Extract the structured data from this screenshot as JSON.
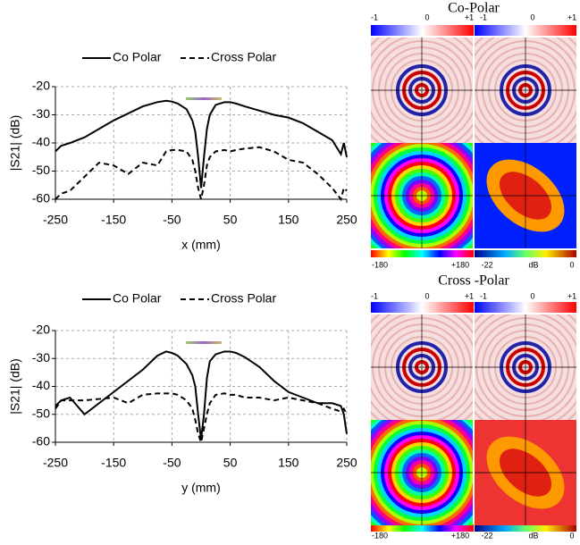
{
  "chart_data": [
    {
      "type": "line",
      "x_label": "x (mm)",
      "y_label": "|S21| (dB)",
      "x": [
        -250,
        -240,
        -225,
        -200,
        -175,
        -150,
        -125,
        -100,
        -75,
        -60,
        -50,
        -40,
        -25,
        -15,
        -10,
        -5,
        0,
        5,
        10,
        15,
        25,
        40,
        50,
        60,
        75,
        100,
        125,
        150,
        175,
        200,
        225,
        240,
        245,
        250
      ],
      "series": [
        {
          "name": "Co Polar",
          "color": "#000000",
          "dash": false,
          "values": [
            -43,
            -41,
            -40,
            -38,
            -35,
            -32,
            -29.5,
            -27,
            -25.5,
            -25,
            -25.3,
            -26,
            -28,
            -32,
            -36,
            -45,
            -56,
            -45,
            -35,
            -30,
            -26.5,
            -25.5,
            -25.5,
            -26,
            -27,
            -28.5,
            -30,
            -31,
            -33,
            -36,
            -39,
            -44,
            -40,
            -45
          ]
        },
        {
          "name": "Cross Polar",
          "color": "#000000",
          "dash": true,
          "values": [
            -60,
            -58,
            -57,
            -52,
            -47,
            -48,
            -51,
            -47,
            -48,
            -43,
            -42.5,
            -42.5,
            -43,
            -46,
            -50,
            -56,
            -60,
            -55,
            -48,
            -45,
            -43,
            -42.5,
            -43,
            -42.5,
            -42,
            -41.5,
            -43,
            -46,
            -47,
            -51,
            -56,
            -60,
            -56,
            -57
          ]
        }
      ],
      "xlim": [
        -250,
        250
      ],
      "ylim": [
        -60,
        -20
      ],
      "xticks": [
        -250,
        -150,
        -50,
        50,
        150,
        250
      ],
      "yticks": [
        -60,
        -50,
        -40,
        -30,
        -20
      ],
      "grid": true
    },
    {
      "type": "line",
      "x_label": "y (mm)",
      "y_label": "|S21| (dB)",
      "x": [
        -250,
        -240,
        -225,
        -200,
        -175,
        -150,
        -125,
        -100,
        -75,
        -60,
        -50,
        -40,
        -25,
        -15,
        -10,
        -5,
        0,
        5,
        10,
        15,
        25,
        40,
        50,
        60,
        75,
        100,
        125,
        150,
        175,
        200,
        225,
        240,
        245,
        250
      ],
      "series": [
        {
          "name": "Co Polar",
          "color": "#000000",
          "dash": false,
          "values": [
            -47,
            -45,
            -44,
            -50,
            -46,
            -42,
            -38,
            -34,
            -29,
            -27.5,
            -28,
            -29,
            -32,
            -36,
            -40,
            -50,
            -59,
            -50,
            -37,
            -31,
            -28.5,
            -27.5,
            -27.5,
            -28,
            -29.5,
            -33,
            -38,
            -42,
            -44,
            -46,
            -46,
            -47,
            -50,
            -57
          ]
        },
        {
          "name": "Cross Polar",
          "color": "#000000",
          "dash": true,
          "values": [
            -48,
            -45,
            -45,
            -45,
            -44.5,
            -44,
            -46,
            -43,
            -42.5,
            -42.5,
            -42.5,
            -43,
            -45,
            -48,
            -52,
            -57,
            -60,
            -55,
            -50,
            -46,
            -43,
            -42.5,
            -43,
            -43,
            -44,
            -44,
            -45,
            -44,
            -45,
            -46,
            -48,
            -49,
            -48,
            -50
          ]
        }
      ],
      "xlim": [
        -250,
        250
      ],
      "ylim": [
        -60,
        -20
      ],
      "xticks": [
        -250,
        -150,
        -50,
        50,
        150,
        250
      ],
      "yticks": [
        -60,
        -50,
        -40,
        -30,
        -20
      ],
      "grid": true
    }
  ],
  "image_panels": [
    {
      "title": "Co-Polar",
      "top_labels": [
        "-1",
        "0",
        "+1",
        "-1",
        "0",
        "+1"
      ],
      "bottom_labels": [
        "-180",
        "+180",
        "-22",
        "dB",
        "0"
      ]
    },
    {
      "title": "Cross -Polar",
      "top_labels": [
        "-1",
        "0",
        "+1",
        "-1",
        "0",
        "+1"
      ],
      "bottom_labels": [
        "-180",
        "+180",
        "-22",
        "dB",
        "0"
      ]
    }
  ]
}
